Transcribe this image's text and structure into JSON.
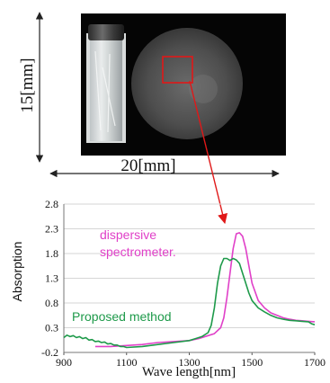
{
  "figure": {
    "height_label": "15[mm]",
    "width_label": "20[mm]"
  },
  "colors": {
    "dispersive": "#e040c8",
    "proposed": "#1e9a4a",
    "roi": "#e01818",
    "grid": "#d6d6d6"
  },
  "chart_data": {
    "type": "line",
    "xlabel": "Wave length[nm]",
    "ylabel": "Absorption",
    "xlim": [
      900,
      1700
    ],
    "ylim": [
      -0.2,
      2.8
    ],
    "x_ticks": [
      900,
      1100,
      1300,
      1500,
      1700
    ],
    "y_ticks": [
      -0.2,
      0.3,
      0.8,
      1.3,
      1.8,
      2.3,
      2.8
    ],
    "x_tick_labels": [
      "900",
      "1100",
      "1300",
      "1500",
      "1700"
    ],
    "y_tick_labels": [
      "-0.2",
      "0.3",
      "0.8",
      "1.3",
      "1.8",
      "2.3",
      "2.8"
    ],
    "grid": "horizontal",
    "series": [
      {
        "name": "dispersive spectrometer.",
        "color": "#e040c8",
        "points": [
          [
            1000,
            -0.08
          ],
          [
            1050,
            -0.08
          ],
          [
            1100,
            -0.06
          ],
          [
            1150,
            -0.04
          ],
          [
            1200,
            0.0
          ],
          [
            1250,
            0.02
          ],
          [
            1300,
            0.04
          ],
          [
            1330,
            0.08
          ],
          [
            1360,
            0.14
          ],
          [
            1380,
            0.18
          ],
          [
            1400,
            0.3
          ],
          [
            1410,
            0.5
          ],
          [
            1420,
            0.9
          ],
          [
            1430,
            1.4
          ],
          [
            1440,
            1.9
          ],
          [
            1450,
            2.2
          ],
          [
            1460,
            2.22
          ],
          [
            1470,
            2.15
          ],
          [
            1480,
            1.9
          ],
          [
            1490,
            1.55
          ],
          [
            1500,
            1.2
          ],
          [
            1520,
            0.85
          ],
          [
            1540,
            0.7
          ],
          [
            1560,
            0.6
          ],
          [
            1580,
            0.55
          ],
          [
            1600,
            0.5
          ],
          [
            1620,
            0.47
          ],
          [
            1640,
            0.45
          ],
          [
            1660,
            0.44
          ],
          [
            1680,
            0.43
          ],
          [
            1700,
            0.42
          ]
        ]
      },
      {
        "name": "Proposed method",
        "color": "#1e9a4a",
        "points": [
          [
            900,
            0.1
          ],
          [
            910,
            0.15
          ],
          [
            920,
            0.12
          ],
          [
            930,
            0.14
          ],
          [
            940,
            0.1
          ],
          [
            950,
            0.12
          ],
          [
            960,
            0.08
          ],
          [
            970,
            0.1
          ],
          [
            980,
            0.05
          ],
          [
            990,
            0.06
          ],
          [
            1000,
            0.02
          ],
          [
            1010,
            0.03
          ],
          [
            1020,
            0.0
          ],
          [
            1030,
            0.01
          ],
          [
            1040,
            -0.03
          ],
          [
            1050,
            -0.02
          ],
          [
            1060,
            -0.05
          ],
          [
            1070,
            -0.05
          ],
          [
            1080,
            -0.08
          ],
          [
            1090,
            -0.08
          ],
          [
            1100,
            -0.1
          ],
          [
            1150,
            -0.08
          ],
          [
            1200,
            -0.04
          ],
          [
            1250,
            0.0
          ],
          [
            1300,
            0.04
          ],
          [
            1320,
            0.08
          ],
          [
            1340,
            0.12
          ],
          [
            1360,
            0.2
          ],
          [
            1370,
            0.35
          ],
          [
            1380,
            0.7
          ],
          [
            1390,
            1.2
          ],
          [
            1400,
            1.55
          ],
          [
            1410,
            1.7
          ],
          [
            1420,
            1.7
          ],
          [
            1430,
            1.66
          ],
          [
            1440,
            1.7
          ],
          [
            1450,
            1.67
          ],
          [
            1460,
            1.6
          ],
          [
            1470,
            1.4
          ],
          [
            1480,
            1.2
          ],
          [
            1490,
            1.0
          ],
          [
            1500,
            0.85
          ],
          [
            1520,
            0.7
          ],
          [
            1540,
            0.62
          ],
          [
            1560,
            0.55
          ],
          [
            1580,
            0.5
          ],
          [
            1600,
            0.47
          ],
          [
            1620,
            0.45
          ],
          [
            1640,
            0.44
          ],
          [
            1660,
            0.43
          ],
          [
            1680,
            0.42
          ],
          [
            1690,
            0.38
          ],
          [
            1700,
            0.36
          ]
        ]
      }
    ]
  }
}
